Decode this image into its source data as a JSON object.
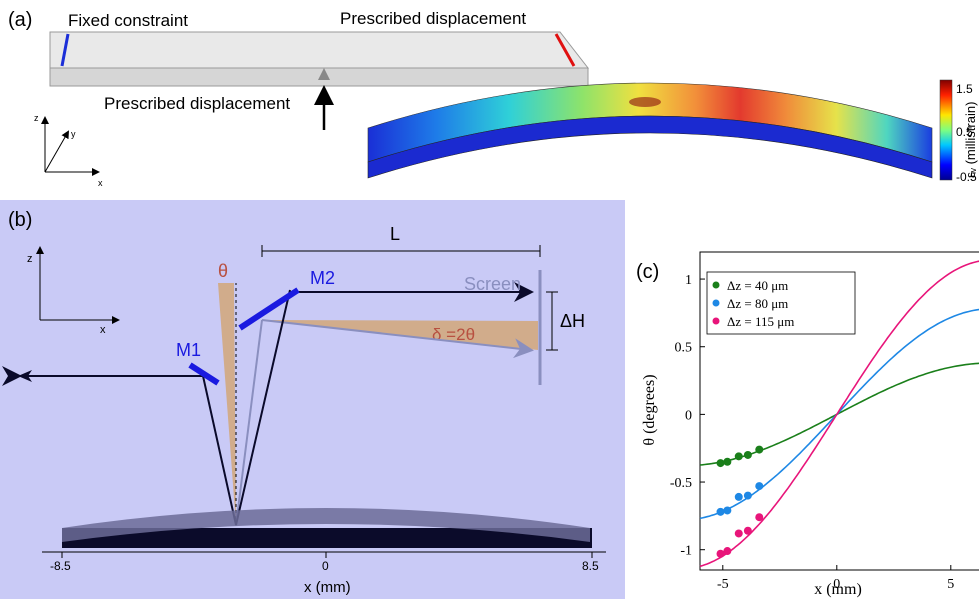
{
  "panel_a": {
    "tag": "(a)",
    "fixed_label": "Fixed constraint",
    "prescribed_top_label": "Prescribed displacement",
    "prescribed_bottom_label": "Prescribed displacement",
    "axes": {
      "z": "z",
      "y": "y",
      "x": "x"
    },
    "colorbar": {
      "ticks": [
        "1.5",
        "0.5",
        "-0.5"
      ],
      "label": "εᵥ (millistrain)"
    }
  },
  "panel_b": {
    "tag": "(b)",
    "L_label": "L",
    "theta_label": "θ",
    "M1_label": "M1",
    "M2_label": "M2",
    "screen_label": "Screen",
    "dH_label": "ΔH",
    "delta_label": "δ =2θ",
    "axes": {
      "z": "z",
      "x": "x"
    },
    "x_ticks": [
      "-8.5",
      "0",
      "8.5"
    ],
    "xlabel": "x (mm)"
  },
  "chart_data": {
    "type": "scatter",
    "tag": "(c)",
    "xlabel": "x (mm)",
    "ylabel": "θ (degrees)",
    "xlim": [
      -6,
      6.5
    ],
    "ylim": [
      -1.15,
      1.2
    ],
    "x_ticks": [
      "-5",
      "0",
      "5"
    ],
    "y_ticks": [
      "1",
      "0.5",
      "0",
      "-0.5",
      "-1"
    ],
    "legend_position": "top-left",
    "series": [
      {
        "name": "Δz = 40 μm",
        "color": "#1a7f1a",
        "amplitude": 0.38,
        "points": [
          [
            -5.1,
            -0.36
          ],
          [
            -4.8,
            -0.35
          ],
          [
            -4.3,
            -0.31
          ],
          [
            -3.9,
            -0.3
          ],
          [
            -3.4,
            -0.26
          ]
        ]
      },
      {
        "name": "Δz = 80 μm",
        "color": "#1e88e5",
        "amplitude": 0.78,
        "points": [
          [
            -5.1,
            -0.72
          ],
          [
            -4.8,
            -0.71
          ],
          [
            -4.3,
            -0.61
          ],
          [
            -3.9,
            -0.6
          ],
          [
            -3.4,
            -0.53
          ]
        ]
      },
      {
        "name": "Δz = 115 μm",
        "color": "#e8157a",
        "amplitude": 1.14,
        "points": [
          [
            -5.1,
            -1.03
          ],
          [
            -4.8,
            -1.01
          ],
          [
            -4.3,
            -0.88
          ],
          [
            -3.9,
            -0.86
          ],
          [
            -3.4,
            -0.76
          ]
        ]
      }
    ]
  }
}
